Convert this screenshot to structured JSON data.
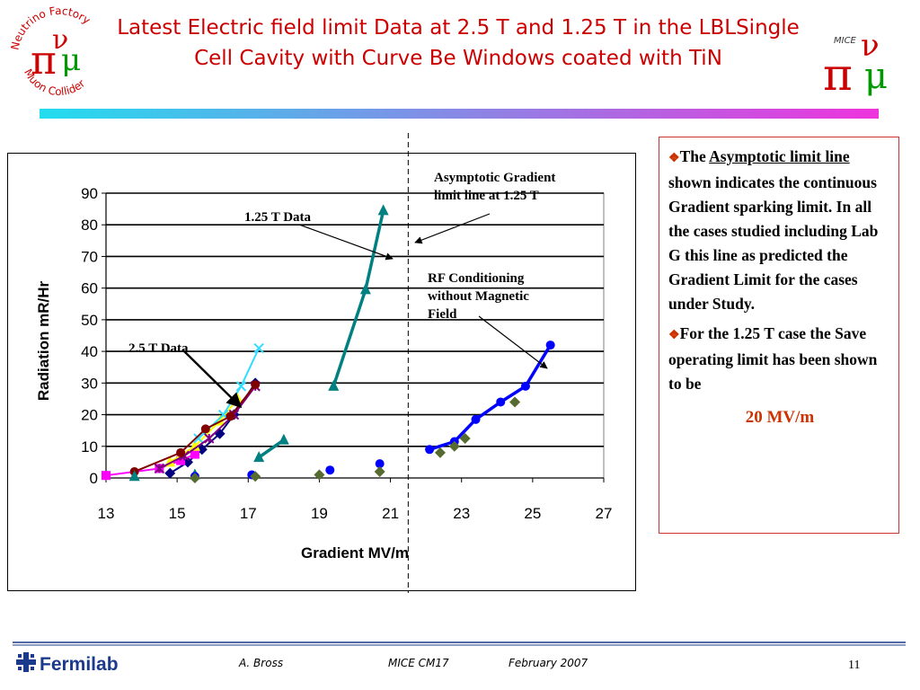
{
  "slide": {
    "title": "Latest Electric field limit Data at 2.5 T and 1.25 T in the LBLSingle Cell Cavity with Curve Be Windows coated with TiN",
    "page_number": "11"
  },
  "logos": {
    "left_arc_top": "Neutrino Factory",
    "left_arc_bottom": "Muon Collider",
    "right_label": "MICE",
    "pi_symbol": "π",
    "nu_symbol": "ν",
    "mu_symbol": "μ"
  },
  "colors": {
    "title": "#cc0000",
    "accent": "#cc3300",
    "bar_start": "#22ddee",
    "bar_end": "#ee33dd"
  },
  "sidebar": {
    "p1_pre": "The ",
    "p1_link": "Asymptotic limit line",
    "p1_post": " shown indicates the continuous Gradient sparking limit. In all the cases studied including Lab G this line as predicted the Gradient Limit for the cases under Study.",
    "p2": "For the 1.25 T case the Save operating limit has been shown to be",
    "limit_value": "20 MV/m"
  },
  "footer": {
    "logo_text": "Fermilab",
    "author": "A. Bross",
    "meeting": "MICE CM17",
    "date": "February 2007"
  },
  "chart_data": {
    "type": "scatter",
    "xlabel": "Gradient MV/m",
    "ylabel": "Radiation mR/Hr",
    "xlim": [
      13,
      27
    ],
    "ylim": [
      0,
      90
    ],
    "xticks": [
      13,
      15,
      17,
      19,
      21,
      23,
      25,
      27
    ],
    "yticks": [
      0,
      10,
      20,
      30,
      40,
      50,
      60,
      70,
      80,
      90
    ],
    "grid": "horizontal",
    "asymptote_x": 21.5,
    "series": [
      {
        "group": "2.5 T",
        "color": "#000080",
        "marker": "diamond",
        "line": true,
        "points": [
          [
            14.8,
            1.5
          ],
          [
            15.3,
            5
          ],
          [
            15.7,
            9
          ],
          [
            16.2,
            14
          ],
          [
            16.6,
            20
          ],
          [
            17.2,
            30
          ]
        ]
      },
      {
        "group": "2.5 T",
        "color": "#ff00ff",
        "marker": "square",
        "line": true,
        "points": [
          [
            13.0,
            0.8
          ],
          [
            14.5,
            3
          ],
          [
            15.1,
            5.5
          ],
          [
            15.5,
            7.5
          ]
        ]
      },
      {
        "group": "2.5 T",
        "color": "#ffff00",
        "marker": "triangle",
        "line": true,
        "points": [
          [
            14.8,
            5
          ],
          [
            15.5,
            10
          ],
          [
            16.2,
            18
          ],
          [
            16.7,
            25
          ]
        ]
      },
      {
        "group": "2.5 T",
        "color": "#33ddff",
        "marker": "x",
        "line": true,
        "points": [
          [
            15.6,
            12.5
          ],
          [
            16.3,
            20
          ],
          [
            16.8,
            29
          ],
          [
            17.3,
            41
          ]
        ]
      },
      {
        "group": "2.5 T",
        "color": "#800080",
        "marker": "star",
        "line": true,
        "points": [
          [
            14.5,
            3
          ],
          [
            15.2,
            7
          ],
          [
            15.9,
            12.5
          ],
          [
            16.6,
            20
          ],
          [
            17.2,
            29
          ]
        ]
      },
      {
        "group": "2.5 T",
        "color": "#800000",
        "marker": "circle",
        "line": true,
        "points": [
          [
            13.8,
            2
          ],
          [
            15.1,
            8
          ],
          [
            15.8,
            15.5
          ],
          [
            16.5,
            19.5
          ],
          [
            17.2,
            29.5
          ]
        ]
      },
      {
        "group": "2.5 T",
        "color": "#008080",
        "marker": "triangle",
        "line": false,
        "points": [
          [
            13.8,
            0.5
          ],
          [
            15.5,
            1
          ]
        ]
      },
      {
        "group": "2.5 T",
        "color": "#0000ff",
        "marker": "circle",
        "line": false,
        "points": [
          [
            15.5,
            0.5
          ],
          [
            17.1,
            1
          ]
        ]
      },
      {
        "group": "2.5 T",
        "color": "#556b2f",
        "marker": "diamond",
        "line": false,
        "points": [
          [
            15.5,
            0
          ],
          [
            17.2,
            0.5
          ]
        ]
      },
      {
        "group": "1.25 T",
        "color": "#008080",
        "marker": "triangle",
        "line": true,
        "points": [
          [
            17.3,
            6.5
          ],
          [
            18.0,
            12
          ]
        ]
      },
      {
        "group": "1.25 T",
        "color": "#008080",
        "marker": "triangle",
        "line": true,
        "points": [
          [
            19.4,
            29
          ],
          [
            20.3,
            59.5
          ],
          [
            20.8,
            84.5
          ]
        ]
      },
      {
        "group": "1.25 T",
        "color": "#0000ff",
        "marker": "circle",
        "line": false,
        "points": [
          [
            19.3,
            2.5
          ],
          [
            20.7,
            4.5
          ]
        ]
      },
      {
        "group": "1.25 T",
        "color": "#556b2f",
        "marker": "diamond",
        "line": false,
        "points": [
          [
            19.0,
            1
          ],
          [
            20.7,
            2
          ]
        ]
      },
      {
        "group": "RF no B",
        "color": "#0000ff",
        "marker": "circle",
        "line": true,
        "points": [
          [
            22.1,
            9
          ],
          [
            22.8,
            11.5
          ],
          [
            23.4,
            18.5
          ],
          [
            24.1,
            24
          ],
          [
            24.8,
            29
          ],
          [
            25.5,
            42
          ]
        ]
      },
      {
        "group": "RF no B",
        "color": "#556b2f",
        "marker": "diamond",
        "line": false,
        "points": [
          [
            22.4,
            8
          ],
          [
            22.8,
            10
          ],
          [
            23.1,
            12.5
          ],
          [
            24.5,
            24
          ]
        ]
      }
    ],
    "annotations": [
      {
        "id": "asymptote",
        "text_lines": [
          "Asymptotic Gradient",
          "limit line at 1.25 T"
        ]
      },
      {
        "id": "data125",
        "text_lines": [
          "1.25 T Data"
        ]
      },
      {
        "id": "rf",
        "text_lines": [
          "RF Conditioning",
          "without Magnetic",
          "Field"
        ]
      },
      {
        "id": "data25",
        "text_lines": [
          "2.5 T Data"
        ]
      }
    ]
  }
}
